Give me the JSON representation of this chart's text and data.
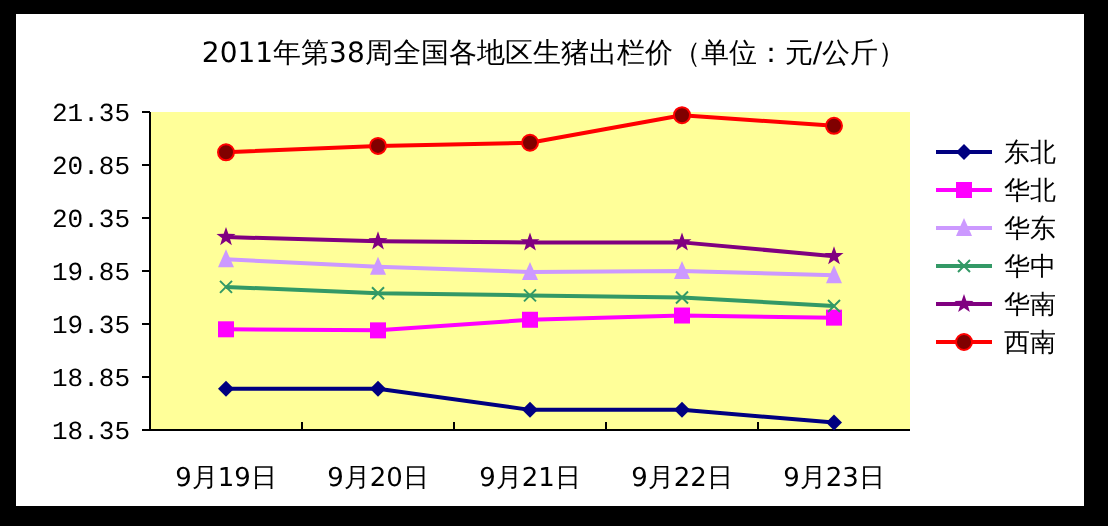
{
  "chart_data": {
    "type": "line",
    "title": "2011年第38周全国各地区生猪出栏价（单位：元/公斤）",
    "categories": [
      "9月19日",
      "9月20日",
      "9月21日",
      "9月22日",
      "9月23日"
    ],
    "ylim": [
      18.35,
      21.35
    ],
    "yticks": [
      {
        "value": 18.35,
        "label": "18.35"
      },
      {
        "value": 18.85,
        "label": "18.85"
      },
      {
        "value": 19.35,
        "label": "19.35"
      },
      {
        "value": 19.85,
        "label": "19.85"
      },
      {
        "value": 20.35,
        "label": "20.35"
      },
      {
        "value": 20.85,
        "label": "20.85"
      },
      {
        "value": 21.35,
        "label": "21.35"
      }
    ],
    "grid": false,
    "legend": "right",
    "series": [
      {
        "name": "东北",
        "color": "#000080",
        "marker": "diamond",
        "values": [
          18.74,
          18.74,
          18.54,
          18.54,
          18.42
        ]
      },
      {
        "name": "华北",
        "color": "#ff00ff",
        "marker": "square",
        "values": [
          19.3,
          19.29,
          19.39,
          19.43,
          19.41
        ]
      },
      {
        "name": "华东",
        "color": "#cc99ff",
        "marker": "triangle",
        "values": [
          19.96,
          19.89,
          19.84,
          19.85,
          19.81
        ]
      },
      {
        "name": "华中",
        "color": "#339966",
        "marker": "cross",
        "values": [
          19.7,
          19.64,
          19.62,
          19.6,
          19.52
        ]
      },
      {
        "name": "华南",
        "color": "#800080",
        "marker": "star",
        "values": [
          20.17,
          20.13,
          20.12,
          20.12,
          19.99
        ]
      },
      {
        "name": "西南",
        "color": "#ff0000",
        "marker": "circle",
        "values": [
          20.97,
          21.03,
          21.06,
          21.32,
          21.22
        ]
      }
    ]
  }
}
